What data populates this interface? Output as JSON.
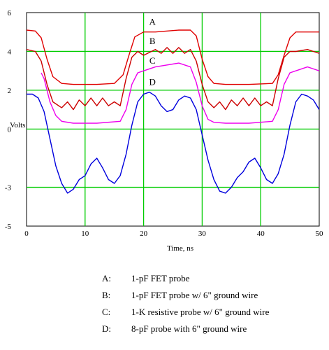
{
  "chart_data": {
    "type": "line",
    "title": "",
    "xlabel": "Time, ns",
    "ylabel": "Volts",
    "xlim": [
      0,
      50
    ],
    "ylim": [
      -5,
      6
    ],
    "x_ticks": [
      0,
      10,
      20,
      30,
      40,
      50
    ],
    "y_ticks": [
      6,
      4,
      2,
      0,
      -3,
      -5
    ],
    "grid": true,
    "grid_color": "#00cc00",
    "series": [
      {
        "name": "A",
        "color": "#e00000",
        "x": [
          -2,
          0,
          1.5,
          2.5,
          3.5,
          4.5,
          6,
          8,
          12,
          15,
          16.5,
          17.5,
          18.5,
          20,
          22,
          26,
          28,
          29,
          30,
          31,
          32,
          34,
          38,
          42,
          43,
          44,
          45,
          46,
          48,
          50
        ],
        "y": [
          5.0,
          5.1,
          5.05,
          4.7,
          3.6,
          2.7,
          2.35,
          2.3,
          2.3,
          2.35,
          2.8,
          3.8,
          4.75,
          5.0,
          5.0,
          5.1,
          5.1,
          4.8,
          3.6,
          2.7,
          2.35,
          2.3,
          2.3,
          2.35,
          2.8,
          3.8,
          4.7,
          5.0,
          5.0,
          5.0
        ]
      },
      {
        "name": "B",
        "color": "#cc0000",
        "x": [
          -2,
          0,
          1.5,
          2.5,
          3.5,
          4.5,
          6,
          7,
          8,
          9,
          10,
          11,
          12,
          13,
          14,
          15,
          16,
          17,
          18,
          19,
          20,
          22,
          23,
          24,
          25,
          26,
          27,
          28,
          29,
          30,
          31,
          32,
          33,
          34,
          35,
          36,
          37,
          38,
          39,
          40,
          41,
          42,
          43,
          44,
          45,
          46,
          48,
          50
        ],
        "y": [
          3.8,
          4.1,
          4.0,
          3.5,
          2.3,
          1.4,
          1.1,
          1.4,
          1.0,
          1.5,
          1.2,
          1.6,
          1.2,
          1.6,
          1.2,
          1.4,
          1.2,
          2.6,
          3.7,
          4.0,
          3.8,
          4.1,
          3.9,
          4.2,
          3.9,
          4.2,
          3.9,
          4.1,
          3.5,
          2.3,
          1.4,
          1.1,
          1.4,
          1.0,
          1.5,
          1.2,
          1.6,
          1.2,
          1.6,
          1.2,
          1.4,
          1.2,
          2.6,
          3.7,
          4.0,
          4.0,
          4.1,
          3.9
        ]
      },
      {
        "name": "C",
        "color": "#ee00ee",
        "x": [
          2.5,
          3,
          4,
          5,
          6,
          8,
          12,
          16,
          17,
          18,
          19,
          20,
          22,
          26,
          28,
          29,
          30,
          31,
          32,
          34,
          38,
          42,
          43,
          44,
          45,
          46,
          48,
          50
        ],
        "y": [
          2.9,
          2.6,
          1.4,
          0.7,
          0.4,
          0.3,
          0.3,
          0.4,
          1.0,
          2.3,
          2.9,
          3.0,
          3.2,
          3.4,
          3.2,
          2.4,
          1.2,
          0.5,
          0.35,
          0.3,
          0.3,
          0.4,
          1.0,
          2.3,
          2.9,
          3.0,
          3.2,
          3.0
        ]
      },
      {
        "name": "D",
        "color": "#0000dd",
        "x": [
          -2,
          0,
          1,
          2,
          3,
          4,
          5,
          6,
          7,
          8,
          9,
          10,
          11,
          12,
          13,
          14,
          15,
          16,
          17,
          18,
          19,
          20,
          21,
          22,
          23,
          24,
          25,
          26,
          27,
          28,
          29,
          30,
          31,
          32,
          33,
          34,
          35,
          36,
          37,
          38,
          39,
          40,
          41,
          42,
          43,
          44,
          45,
          46,
          47,
          48,
          49,
          50
        ],
        "y": [
          1.2,
          1.8,
          1.8,
          1.6,
          0.9,
          -0.5,
          -1.9,
          -2.8,
          -3.3,
          -3.1,
          -2.6,
          -2.4,
          -1.8,
          -1.5,
          -2.0,
          -2.6,
          -2.8,
          -2.4,
          -1.3,
          0.2,
          1.4,
          1.8,
          1.9,
          1.7,
          1.2,
          0.9,
          1.0,
          1.5,
          1.7,
          1.6,
          1.0,
          -0.3,
          -1.6,
          -2.6,
          -3.2,
          -3.3,
          -3.0,
          -2.5,
          -2.2,
          -1.7,
          -1.5,
          -2.0,
          -2.6,
          -2.8,
          -2.3,
          -1.3,
          0.2,
          1.4,
          1.8,
          1.7,
          1.5,
          1.0
        ]
      }
    ],
    "curve_tags": [
      {
        "label": "A",
        "x": 21.5,
        "y": 5.55
      },
      {
        "label": "B",
        "x": 21.5,
        "y": 4.55
      },
      {
        "label": "C",
        "x": 21.5,
        "y": 3.55
      },
      {
        "label": "D",
        "x": 21.5,
        "y": 2.45
      }
    ],
    "legend": [
      {
        "key": "A:",
        "text": "1-pF FET probe"
      },
      {
        "key": "B:",
        "text": "1-pF FET probe w/ 6\" ground wire"
      },
      {
        "key": "C:",
        "text": "1-K resistive probe w/ 6\" ground wire"
      },
      {
        "key": "D:",
        "text": "8-pF probe with 6\" ground wire"
      }
    ]
  }
}
